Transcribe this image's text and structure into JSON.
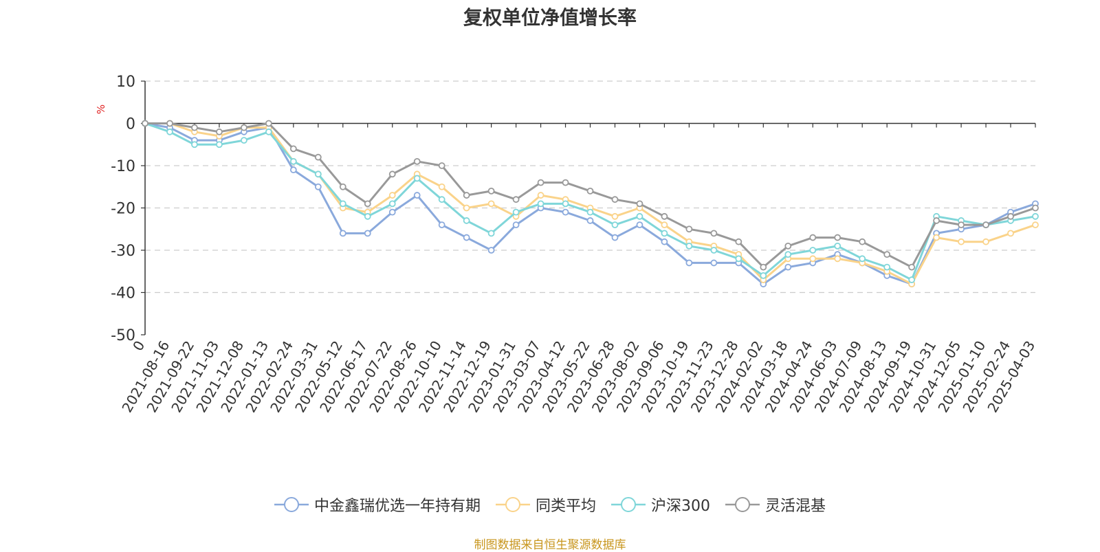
{
  "chart_data": {
    "type": "line",
    "title": "复权单位净值增长率",
    "ylabel": "%",
    "ylim": [
      -50,
      10
    ],
    "yticks": [
      10,
      0,
      -10,
      -20,
      -30,
      -40,
      -50
    ],
    "x_origin_label": "0",
    "categories": [
      "2021-08-16",
      "2021-09-22",
      "2021-11-03",
      "2021-12-08",
      "2022-01-13",
      "2022-02-24",
      "2022-03-31",
      "2022-05-12",
      "2022-06-17",
      "2022-07-22",
      "2022-08-26",
      "2022-10-10",
      "2022-11-14",
      "2022-12-19",
      "2023-01-31",
      "2023-03-07",
      "2023-04-12",
      "2023-05-22",
      "2023-06-28",
      "2023-08-02",
      "2023-09-06",
      "2023-10-19",
      "2023-11-23",
      "2023-12-28",
      "2024-02-02",
      "2024-03-18",
      "2024-04-24",
      "2024-06-03",
      "2024-07-09",
      "2024-08-13",
      "2024-09-19",
      "2024-10-31",
      "2024-12-05",
      "2025-01-10",
      "2025-02-24",
      "2025-04-03"
    ],
    "series": [
      {
        "name": "中金鑫瑞优选一年持有期",
        "color": "#8aa9dc",
        "values": [
          -1,
          -4,
          -4,
          -2,
          -1,
          -11,
          -15,
          -26,
          -26,
          -21,
          -17,
          -24,
          -27,
          -30,
          -24,
          -20,
          -21,
          -23,
          -27,
          -24,
          -28,
          -33,
          -33,
          -33,
          -38,
          -34,
          -33,
          -31,
          -33,
          -36,
          -38,
          -26,
          -25,
          -24,
          -21,
          -19
        ]
      },
      {
        "name": "同类平均",
        "color": "#fad38a",
        "values": [
          0,
          -2,
          -3,
          -1,
          -1,
          -9,
          -12,
          -20,
          -21,
          -17,
          -12,
          -15,
          -20,
          -19,
          -22,
          -17,
          -18,
          -20,
          -22,
          -20,
          -24,
          -28,
          -29,
          -31,
          -37,
          -32,
          -32,
          -32,
          -33,
          -35,
          -38,
          -27,
          -28,
          -28,
          -26,
          -24
        ]
      },
      {
        "name": "沪深300",
        "color": "#7fd6d9",
        "values": [
          -2,
          -5,
          -5,
          -4,
          -2,
          -9,
          -12,
          -19,
          -22,
          -19,
          -13,
          -18,
          -23,
          -26,
          -21,
          -19,
          -19,
          -21,
          -24,
          -22,
          -26,
          -29,
          -30,
          -32,
          -36,
          -31,
          -30,
          -29,
          -32,
          -34,
          -37,
          -22,
          -23,
          -24,
          -23,
          -22
        ]
      },
      {
        "name": "灵活混基",
        "color": "#999999",
        "values": [
          0,
          -1,
          -2,
          -1,
          0,
          -6,
          -8,
          -15,
          -19,
          -12,
          -9,
          -10,
          -17,
          -16,
          -18,
          -14,
          -14,
          -16,
          -18,
          -19,
          -22,
          -25,
          -26,
          -28,
          -34,
          -29,
          -27,
          -27,
          -28,
          -31,
          -34,
          -23,
          -24,
          -24,
          -22,
          -20
        ]
      }
    ],
    "legend_position": "bottom"
  },
  "source_note": "制图数据来自恒生聚源数据库"
}
